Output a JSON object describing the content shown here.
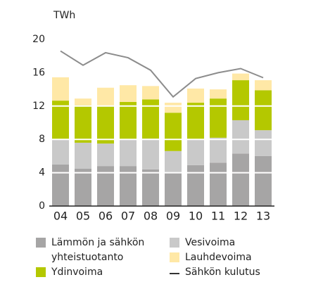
{
  "chart_data": {
    "type": "bar",
    "stacked": true,
    "unit_label": "TWh",
    "categories": [
      "04",
      "05",
      "06",
      "07",
      "08",
      "09",
      "10",
      "11",
      "12",
      "13"
    ],
    "ylim": [
      0,
      20
    ],
    "yticks": [
      0,
      4,
      8,
      12,
      16,
      20
    ],
    "grid": true,
    "series": [
      {
        "name": "Lämmön ja sähkön yhteistuotanto",
        "color": "#a6a5a5",
        "values": [
          5.0,
          4.5,
          4.8,
          4.8,
          4.4,
          4.0,
          4.9,
          5.2,
          6.3,
          6.0
        ]
      },
      {
        "name": "Vesivoima",
        "color": "#c9c9c9",
        "values": [
          3.0,
          3.1,
          2.7,
          3.2,
          3.7,
          2.6,
          3.1,
          3.0,
          4.0,
          3.1
        ]
      },
      {
        "name": "Ydinvoima",
        "color": "#b4c800",
        "values": [
          4.65,
          4.5,
          4.5,
          4.5,
          4.7,
          4.6,
          4.4,
          4.7,
          4.8,
          4.8
        ]
      },
      {
        "name": "Lauhdevoima",
        "color": "#ffe8a6",
        "values": [
          2.8,
          0.8,
          2.2,
          2.0,
          1.6,
          1.2,
          1.7,
          1.1,
          0.8,
          1.2
        ]
      },
      {
        "name": "Sähkön kulutus",
        "type": "line",
        "color": "#8c8c8c",
        "values": [
          18.6,
          16.9,
          18.4,
          17.8,
          16.3,
          13.1,
          15.3,
          16.0,
          16.5,
          15.4
        ]
      }
    ]
  }
}
